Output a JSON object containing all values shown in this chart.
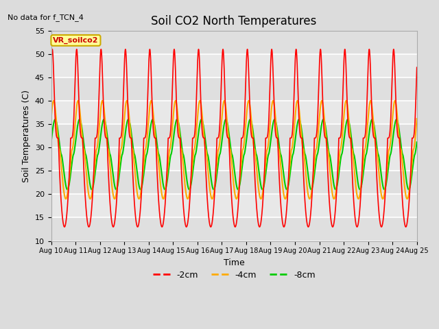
{
  "title": "Soil CO2 North Temperatures",
  "no_data_text": "No data for f_TCN_4",
  "ylabel": "Soil Temperatures (C)",
  "xlabel": "Time",
  "ylim": [
    10,
    55
  ],
  "yticks": [
    10,
    15,
    20,
    25,
    30,
    35,
    40,
    45,
    50,
    55
  ],
  "x_labels": [
    "Aug 10",
    "Aug 11",
    "Aug 12",
    "Aug 13",
    "Aug 14",
    "Aug 15",
    "Aug 16",
    "Aug 17",
    "Aug 18",
    "Aug 19",
    "Aug 20",
    "Aug 21",
    "Aug 22",
    "Aug 23",
    "Aug 24",
    "Aug 25"
  ],
  "legend_label": "VR_soilco2",
  "series_labels": [
    "-2cm",
    "-4cm",
    "-8cm"
  ],
  "series_colors": [
    "#ff0000",
    "#ffaa00",
    "#00cc00"
  ],
  "background_color": "#dcdcdc",
  "plot_bg_color": "#e8e8e8",
  "figsize": [
    6.4,
    4.8
  ],
  "dpi": 100
}
